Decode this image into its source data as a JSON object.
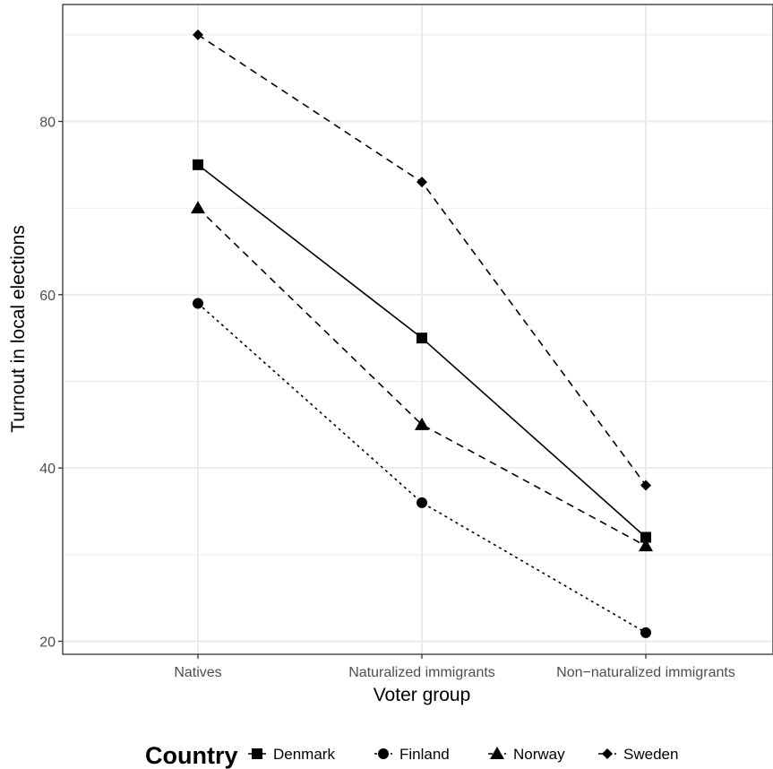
{
  "chart_data": {
    "type": "line",
    "xlabel": "Voter group",
    "ylabel": "Turnout in local elections",
    "categories": [
      "Natives",
      "Naturalized immigrants",
      "Non−naturalized immigrants"
    ],
    "yticks": [
      "20",
      "40",
      "60",
      "80"
    ],
    "ylim": [
      18.5,
      93.5
    ],
    "grid": true,
    "legend": {
      "title": "Country",
      "position": "bottom"
    },
    "series": [
      {
        "name": "Denmark",
        "values": [
          75,
          55,
          32
        ],
        "marker": "square",
        "linestyle": "solid"
      },
      {
        "name": "Finland",
        "values": [
          59,
          36,
          21
        ],
        "marker": "circle",
        "linestyle": "dotted"
      },
      {
        "name": "Norway",
        "values": [
          70,
          45,
          31
        ],
        "marker": "triangle",
        "linestyle": "dashed"
      },
      {
        "name": "Sweden",
        "values": [
          90,
          73,
          38
        ],
        "marker": "diamond",
        "linestyle": "dashed"
      }
    ],
    "colors": {
      "line": "#000000",
      "grid": "#ebebeb",
      "panel_border": "#333333",
      "tick_text": "#4d4d4d"
    }
  }
}
